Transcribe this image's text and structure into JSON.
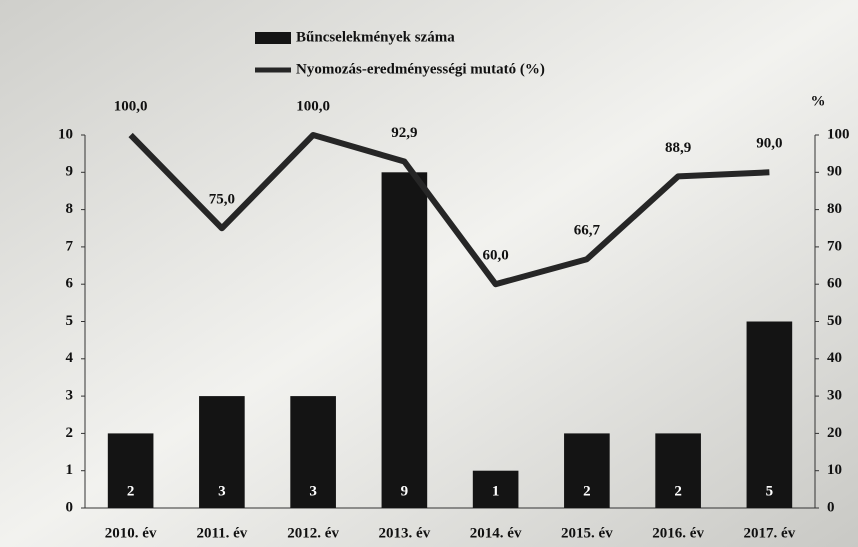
{
  "chart_data": {
    "type": "bar-line",
    "categories": [
      "2010. év",
      "2011. év",
      "2012. év",
      "2013. év",
      "2014. év",
      "2015. év",
      "2016. év",
      "2017. év"
    ],
    "series": [
      {
        "name": "Bűncselekmények száma",
        "type": "bar",
        "color": "#141414",
        "values": [
          2,
          3,
          3,
          9,
          1,
          2,
          2,
          5
        ]
      },
      {
        "name": "Nyomozás-eredményességi mutató (%)",
        "type": "line",
        "axis": "y2",
        "color": "#262626",
        "values": [
          100.0,
          75.0,
          100.0,
          92.9,
          60.0,
          66.7,
          88.9,
          90.0
        ],
        "value_labels": [
          "100,0",
          "75,0",
          "100,0",
          "92,9",
          "60,0",
          "66,7",
          "88,9",
          "90,0"
        ]
      }
    ],
    "ylim": [
      0,
      10
    ],
    "yticks": [
      0,
      1,
      2,
      3,
      4,
      5,
      6,
      7,
      8,
      9,
      10
    ],
    "y2lim": [
      0,
      100
    ],
    "y2ticks": [
      0,
      10,
      20,
      30,
      40,
      50,
      60,
      70,
      80,
      90,
      100
    ],
    "y2label": "%"
  }
}
